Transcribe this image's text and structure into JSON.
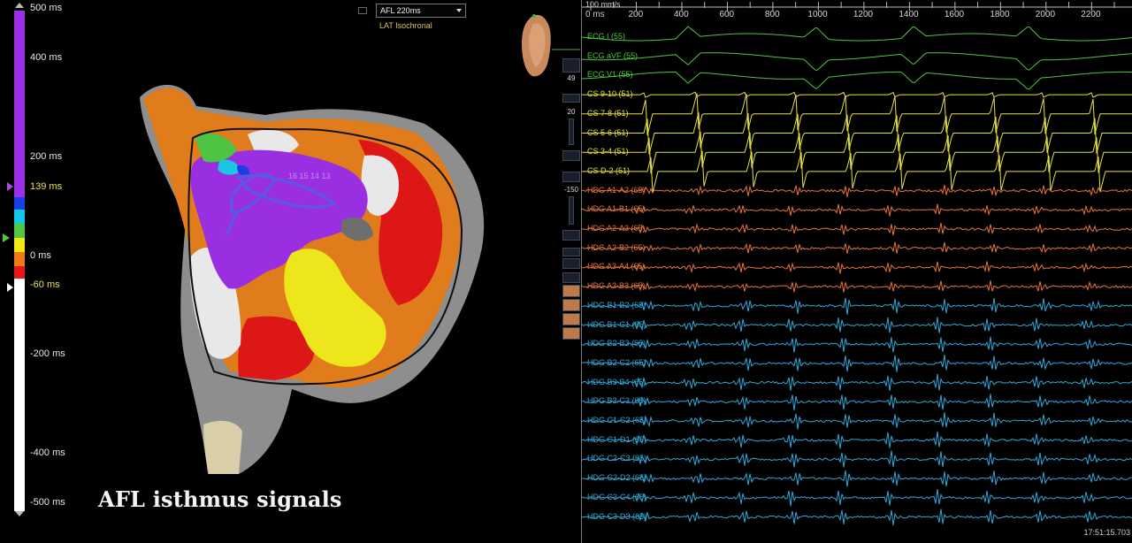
{
  "scale": {
    "labels": [
      {
        "text": "500 ms",
        "highlight": false
      },
      {
        "text": "400 ms",
        "highlight": false
      },
      {
        "text": "200 ms",
        "highlight": false
      },
      {
        "text": "139 ms",
        "highlight": true
      },
      {
        "text": "0 ms",
        "highlight": false
      },
      {
        "text": "-60 ms",
        "highlight": true
      },
      {
        "text": "-200 ms",
        "highlight": false
      },
      {
        "text": "-400 ms",
        "highlight": false
      },
      {
        "text": "-500 ms",
        "highlight": false
      }
    ],
    "colors": {
      "late": "#9b30e6",
      "blue": "#1740e8",
      "cyan": "#16c8e8",
      "green": "#52c845",
      "yellow": "#f2e816",
      "orange": "#f07a18",
      "red": "#e81818",
      "uncolored": "#ffffff"
    }
  },
  "map": {
    "dropdown_value": "AFL 220ms",
    "mode_label": "LAT Isochronal",
    "caption": "AFL isthmus signals",
    "catheter_labels": "16 15 14 13"
  },
  "toolstrip": {
    "value_top": "49",
    "value_gain": "20",
    "value_offset": "-150"
  },
  "signals": {
    "sweep_label": "100 mm/s",
    "zero_label": "0 ms",
    "ruler_ticks": [
      "200",
      "400",
      "600",
      "800",
      "1000",
      "1200",
      "1400",
      "1600",
      "1800",
      "2000",
      "2200"
    ],
    "channels": [
      {
        "label": "ECG I (55)",
        "group": "ecg"
      },
      {
        "label": "ECG aVF (55)",
        "group": "ecg"
      },
      {
        "label": "ECG V1 (55)",
        "group": "ecg"
      },
      {
        "label": "CS  9-10 (51)",
        "group": "cs"
      },
      {
        "label": "CS  7-8 (51)",
        "group": "cs"
      },
      {
        "label": "CS  5-6 (51)",
        "group": "cs"
      },
      {
        "label": "CS  3-4 (51)",
        "group": "cs"
      },
      {
        "label": "CS  D-2 (51)",
        "group": "cs"
      },
      {
        "label": "HDG  A1-A2 (65)",
        "group": "hdga"
      },
      {
        "label": "HDG  A1-B1 (65)",
        "group": "hdga"
      },
      {
        "label": "HDG  A2-A3 (65)",
        "group": "hdga"
      },
      {
        "label": "HDG  A2-B2 (65)",
        "group": "hdga"
      },
      {
        "label": "HDG  A3-A4 (65)",
        "group": "hdga"
      },
      {
        "label": "HDG  A3-B3 (65)",
        "group": "hdga"
      },
      {
        "label": "HDG  B1-B2 (65)",
        "group": "hdgb"
      },
      {
        "label": "HDG  B1-C1 (65)",
        "group": "hdgb"
      },
      {
        "label": "HDG  B2-B3 (65)",
        "group": "hdgb"
      },
      {
        "label": "HDG  B2-C2 (65)",
        "group": "hdgb"
      },
      {
        "label": "HDG  B3-B4 (65)",
        "group": "hdgb"
      },
      {
        "label": "HDG  B3-C3 (65)",
        "group": "hdgb"
      },
      {
        "label": "HDG  C1-C2 (65)",
        "group": "hdgb"
      },
      {
        "label": "HDG  C1-D1 (65)",
        "group": "hdgb"
      },
      {
        "label": "HDG  C2-C3 (65)",
        "group": "hdgb"
      },
      {
        "label": "HDG  C2-D2 (65)",
        "group": "hdgb"
      },
      {
        "label": "HDG  C3-C4 (65)",
        "group": "hdgb"
      },
      {
        "label": "HDG  C3-D3 (65)",
        "group": "hdgb"
      }
    ],
    "group_colors": {
      "ecg": "#4fc83c",
      "cs": "#e6e33a",
      "hdga": "#e8743a",
      "hdgb": "#2fa8d8"
    },
    "timestamp": "17:51:15.703"
  }
}
